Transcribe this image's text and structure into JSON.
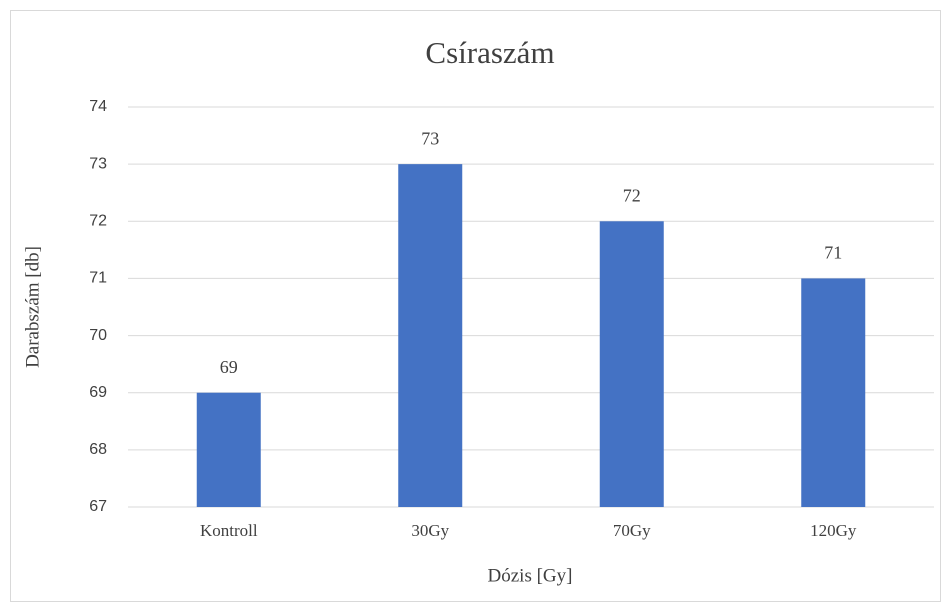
{
  "chart_data": {
    "type": "bar",
    "title": "Csíraszám",
    "x_label": "Dózis [Gy]",
    "y_label": "Darabszám [db]",
    "categories": [
      "Kontroll",
      "30Gy",
      "70Gy",
      "120Gy"
    ],
    "values": [
      69,
      73,
      72,
      71
    ],
    "color": "#4472c4",
    "ylim": [
      67,
      74
    ],
    "yticks": [
      67,
      68,
      69,
      70,
      71,
      72,
      73,
      74
    ],
    "grid": true,
    "data_labels": true
  }
}
